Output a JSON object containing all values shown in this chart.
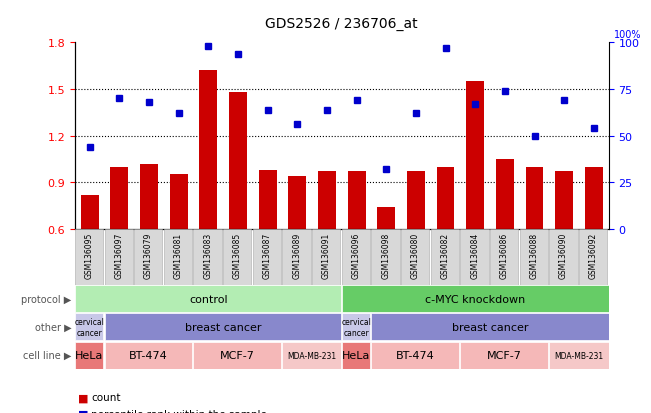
{
  "title": "GDS2526 / 236706_at",
  "samples": [
    "GSM136095",
    "GSM136097",
    "GSM136079",
    "GSM136081",
    "GSM136083",
    "GSM136085",
    "GSM136087",
    "GSM136089",
    "GSM136091",
    "GSM136096",
    "GSM136098",
    "GSM136080",
    "GSM136082",
    "GSM136084",
    "GSM136086",
    "GSM136088",
    "GSM136090",
    "GSM136092"
  ],
  "bar_values": [
    0.82,
    1.0,
    1.02,
    0.95,
    1.62,
    1.48,
    0.98,
    0.94,
    0.97,
    0.97,
    0.74,
    0.97,
    1.0,
    1.55,
    1.05,
    1.0,
    0.97,
    1.0
  ],
  "dot_values": [
    44,
    70,
    68,
    62,
    98,
    94,
    64,
    56,
    64,
    69,
    32,
    62,
    97,
    67,
    74,
    50,
    69,
    54
  ],
  "ylim_left": [
    0.6,
    1.8
  ],
  "ylim_right": [
    0,
    100
  ],
  "yticks_left": [
    0.6,
    0.9,
    1.2,
    1.5,
    1.8
  ],
  "yticks_right": [
    0,
    25,
    50,
    75,
    100
  ],
  "bar_color": "#cc0000",
  "dot_color": "#0000cc",
  "protocol_color_control": "#b3edb3",
  "protocol_color_knockdown": "#66cc66",
  "other_color_cervical": "#c8c8e8",
  "other_color_breast": "#8888cc",
  "cell_line_groups": [
    {
      "label": "HeLa",
      "span": [
        0,
        0
      ],
      "color": "#e87878"
    },
    {
      "label": "BT-474",
      "span": [
        1,
        3
      ],
      "color": "#f5b8b8"
    },
    {
      "label": "MCF-7",
      "span": [
        4,
        6
      ],
      "color": "#f5b8b8"
    },
    {
      "label": "MDA-MB-231",
      "span": [
        7,
        8
      ],
      "color": "#f5c8c8"
    },
    {
      "label": "HeLa",
      "span": [
        9,
        9
      ],
      "color": "#e87878"
    },
    {
      "label": "BT-474",
      "span": [
        10,
        12
      ],
      "color": "#f5b8b8"
    },
    {
      "label": "MCF-7",
      "span": [
        13,
        15
      ],
      "color": "#f5b8b8"
    },
    {
      "label": "MDA-MB-231",
      "span": [
        16,
        17
      ],
      "color": "#f5c8c8"
    }
  ],
  "legend_count_color": "#cc0000",
  "legend_dot_color": "#0000cc",
  "tick_label_bg": "#d8d8d8",
  "tick_label_border": "#aaaaaa"
}
